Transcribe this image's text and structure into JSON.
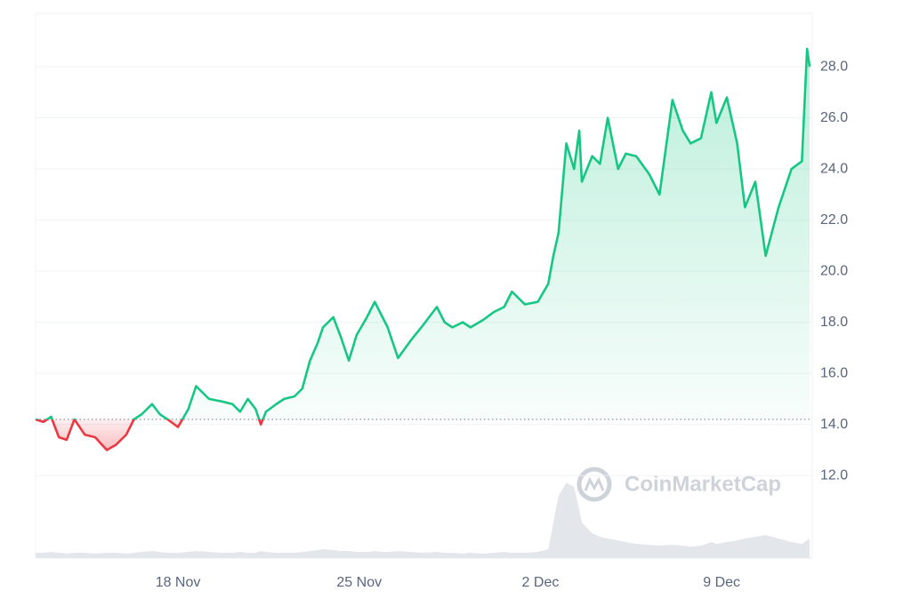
{
  "chart_data": {
    "type": "line",
    "watermark": "CoinMarketCap",
    "x": [
      12.5,
      12.8,
      13.1,
      13.4,
      13.7,
      14,
      14.4,
      14.8,
      15.25,
      15.6,
      16,
      16.3,
      16.6,
      17,
      17.3,
      17.6,
      18,
      18.4,
      18.7,
      19.2,
      19.7,
      20.1,
      20.4,
      20.7,
      21.0,
      21.2,
      21.4,
      21.8,
      22.1,
      22.5,
      22.8,
      23.1,
      23.4,
      23.6,
      24.0,
      24.3,
      24.6,
      24.9,
      25.3,
      25.6,
      25.9,
      26.1,
      26.5,
      27.0,
      27.4,
      28.0,
      28.3,
      28.6,
      29.0,
      29.3,
      29.8,
      30.2,
      30.6,
      30.9,
      31.4,
      31.9,
      32.3,
      32.5,
      32.7,
      33.0,
      33.3,
      33.5,
      33.6,
      34.0,
      34.3,
      34.6,
      35.0,
      35.3,
      35.7,
      36.2,
      36.6,
      37.1,
      37.5,
      37.8,
      38.2,
      38.6,
      38.8,
      39.2,
      39.6,
      39.9,
      40.3,
      40.7,
      41.2,
      41.7,
      42.1,
      42.3,
      42.4
    ],
    "values": [
      14.2,
      14.1,
      14.3,
      13.5,
      13.4,
      14.2,
      13.6,
      13.5,
      13.0,
      13.2,
      13.6,
      14.2,
      14.4,
      14.8,
      14.4,
      14.2,
      13.9,
      14.6,
      15.5,
      15.0,
      14.9,
      14.8,
      14.5,
      15.0,
      14.6,
      14.0,
      14.5,
      14.8,
      15.0,
      15.1,
      15.4,
      16.5,
      17.2,
      17.8,
      18.2,
      17.4,
      16.5,
      17.5,
      18.2,
      18.8,
      18.2,
      17.8,
      16.6,
      17.3,
      17.8,
      18.6,
      18.0,
      17.8,
      18.0,
      17.8,
      18.1,
      18.4,
      18.6,
      19.2,
      18.7,
      18.8,
      19.5,
      20.6,
      21.5,
      25.0,
      24.0,
      25.5,
      23.5,
      24.5,
      24.2,
      26.0,
      24.0,
      24.6,
      24.5,
      23.8,
      23.0,
      26.7,
      25.5,
      25.0,
      25.2,
      27.0,
      25.8,
      26.8,
      25.0,
      22.5,
      23.5,
      20.6,
      22.5,
      24.0,
      24.3,
      28.7,
      28.0
    ],
    "volume": [
      6,
      6,
      7,
      6,
      5,
      6,
      6,
      5,
      6,
      6,
      5,
      6,
      7,
      8,
      7,
      6,
      6,
      7,
      8,
      7,
      6,
      6,
      7,
      6,
      6,
      8,
      7,
      6,
      6,
      6,
      7,
      8,
      9,
      10,
      9,
      8,
      8,
      7,
      7,
      8,
      7,
      7,
      8,
      7,
      6,
      7,
      6,
      6,
      5,
      6,
      5,
      6,
      7,
      6,
      6,
      7,
      10,
      40,
      70,
      85,
      80,
      55,
      40,
      28,
      24,
      22,
      20,
      18,
      16,
      15,
      14,
      15,
      14,
      13,
      14,
      18,
      16,
      18,
      20,
      22,
      24,
      26,
      22,
      18,
      16,
      20,
      22
    ],
    "volume_lim": [
      0,
      100
    ],
    "volume_color": "#e3e6eb",
    "baseline": 14.2,
    "up_color": "#16c784",
    "down_color": "#ea3943",
    "xlim": [
      12.5,
      42.5
    ],
    "xticks": [
      {
        "value": 18,
        "label": "18 Nov"
      },
      {
        "value": 25,
        "label": "25 Nov"
      },
      {
        "value": 32,
        "label": "2 Dec"
      },
      {
        "value": 39,
        "label": "9 Dec"
      }
    ],
    "ylim": [
      8.77,
      30.09
    ],
    "yticks": [
      {
        "value": 12,
        "label": "12.0"
      },
      {
        "value": 14,
        "label": "14.0"
      },
      {
        "value": 16,
        "label": "16.0"
      },
      {
        "value": 18,
        "label": "18.0"
      },
      {
        "value": 20,
        "label": "20.0"
      },
      {
        "value": 22,
        "label": "22.0"
      },
      {
        "value": 24,
        "label": "24.0"
      },
      {
        "value": 26,
        "label": "26.0"
      },
      {
        "value": 28,
        "label": "28.0"
      }
    ],
    "grid": true
  }
}
